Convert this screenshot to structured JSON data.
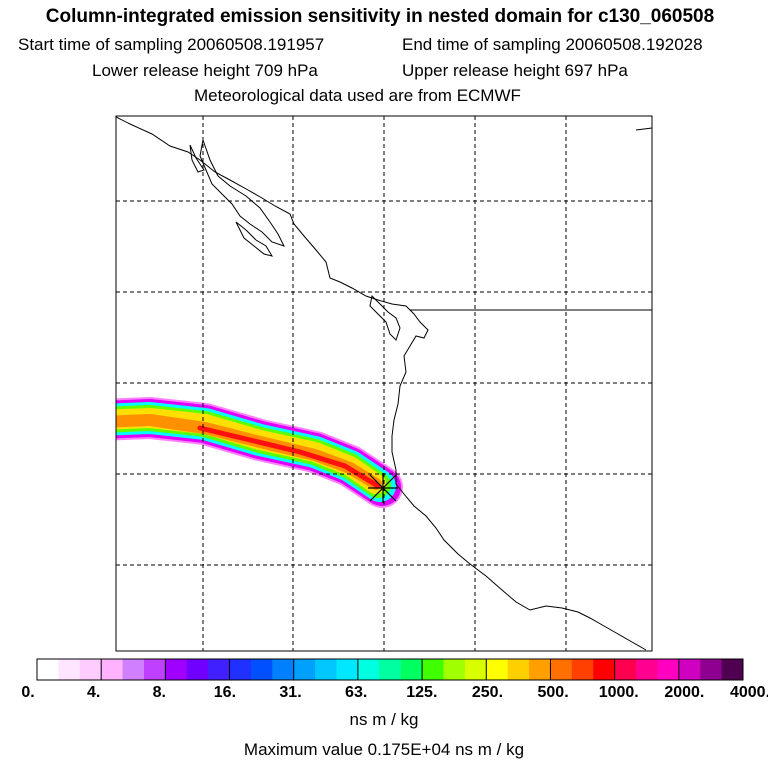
{
  "header": {
    "title": "Column-integrated emission sensitivity in nested domain for c130_060508",
    "start_time": "Start time of sampling 20060508.191957",
    "end_time": "End time of sampling 20060508.192028",
    "lower_height": "Lower release height  709 hPa",
    "upper_height": "Upper release height  697 hPa",
    "met_data": "Meteorological data used are from ECMWF"
  },
  "map": {
    "release_marker": "release-point-cross",
    "plume_colors": [
      "#ff7fff",
      "#ff00ff",
      "#00ffff",
      "#7fff00",
      "#ffd700",
      "#ff8c00",
      "#ff0000"
    ]
  },
  "colorbar": {
    "colors": [
      "#ffffff",
      "#ffe5ff",
      "#ffccff",
      "#ffb3ff",
      "#d080ff",
      "#c040ff",
      "#a000ff",
      "#7000ff",
      "#4020ff",
      "#2030ff",
      "#0050ff",
      "#0080ff",
      "#00a0ff",
      "#00c8ff",
      "#00e8ff",
      "#00ffe0",
      "#00ffa0",
      "#00ff60",
      "#40ff00",
      "#a0ff00",
      "#d8ff00",
      "#ffff00",
      "#ffd000",
      "#ffa000",
      "#ff7000",
      "#ff4000",
      "#ff0000",
      "#ff0050",
      "#ff0090",
      "#ff00c0",
      "#d000c0",
      "#900090",
      "#500050"
    ],
    "labels": [
      "0.",
      "4.",
      "8.",
      "16.",
      "31.",
      "63.",
      "125.",
      "250.",
      "500.",
      "1000.",
      "2000.",
      "4000."
    ],
    "units": "ns m / kg"
  },
  "footer": {
    "max_value": "Maximum value  0.175E+04 ns m / kg"
  }
}
